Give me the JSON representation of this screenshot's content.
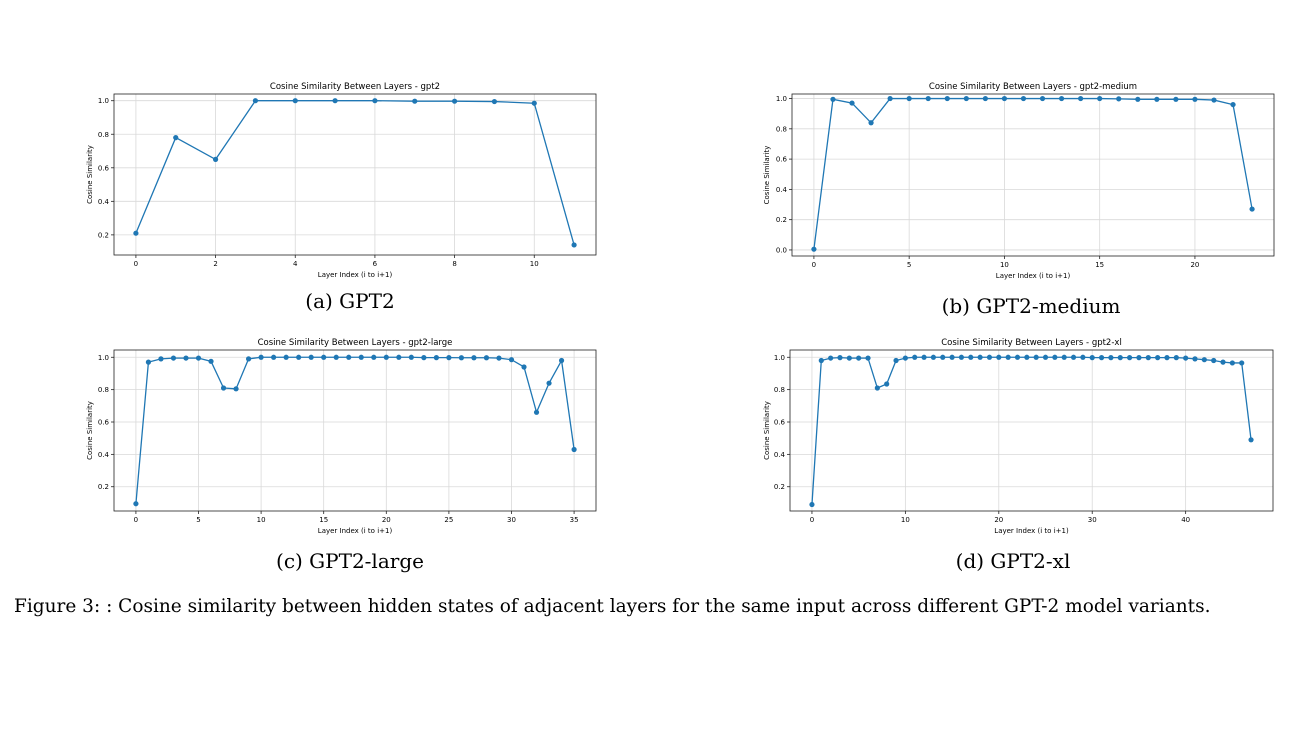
{
  "figure_caption": "Figure 3: : Cosine similarity between hidden states of adjacent layers for the same input across different GPT-2 model variants.",
  "subfigures": [
    {
      "caption": "(a) GPT2"
    },
    {
      "caption": "(b) GPT2-medium"
    },
    {
      "caption": "(c) GPT2-large"
    },
    {
      "caption": "(d) GPT2-xl"
    }
  ],
  "chart_data": [
    {
      "type": "line",
      "title": "Cosine Similarity Between Layers - gpt2",
      "xlabel": "Layer Index (i to i+1)",
      "ylabel": "Cosine Similarity",
      "color": "#1f77b4",
      "grid": true,
      "xlim": [
        -0.55,
        11.55
      ],
      "ylim": [
        0.08,
        1.04
      ],
      "xticks": [
        0,
        2,
        4,
        6,
        8,
        10
      ],
      "yticks": [
        0.2,
        0.4,
        0.6,
        0.8,
        1.0
      ],
      "yticklabels": [
        "0.2",
        "0.4",
        "0.6",
        "0.8",
        "1.0"
      ],
      "x": [
        0,
        1,
        2,
        3,
        4,
        5,
        6,
        7,
        8,
        9,
        10,
        11
      ],
      "y": [
        0.21,
        0.78,
        0.65,
        1.0,
        1.0,
        1.0,
        1.0,
        0.997,
        0.997,
        0.995,
        0.985,
        0.14
      ]
    },
    {
      "type": "line",
      "title": "Cosine Similarity Between Layers - gpt2-medium",
      "xlabel": "Layer Index (i to i+1)",
      "ylabel": "Cosine Similarity",
      "color": "#1f77b4",
      "grid": true,
      "xlim": [
        -1.15,
        24.15
      ],
      "ylim": [
        -0.04,
        1.03
      ],
      "xticks": [
        0,
        5,
        10,
        15,
        20
      ],
      "yticks": [
        0.0,
        0.2,
        0.4,
        0.6,
        0.8,
        1.0
      ],
      "yticklabels": [
        "0.0",
        "0.2",
        "0.4",
        "0.6",
        "0.8",
        "1.0"
      ],
      "x": [
        0,
        1,
        2,
        3,
        4,
        5,
        6,
        7,
        8,
        9,
        10,
        11,
        12,
        13,
        14,
        15,
        16,
        17,
        18,
        19,
        20,
        21,
        22,
        23
      ],
      "y": [
        0.005,
        0.995,
        0.97,
        0.84,
        1.0,
        1.0,
        1.0,
        1.0,
        1.0,
        1.0,
        1.0,
        1.0,
        1.0,
        1.0,
        1.0,
        1.0,
        0.998,
        0.995,
        0.995,
        0.995,
        0.995,
        0.99,
        0.96,
        0.27
      ]
    },
    {
      "type": "line",
      "title": "Cosine Similarity Between Layers - gpt2-large",
      "xlabel": "Layer Index (i to i+1)",
      "ylabel": "Cosine Similarity",
      "color": "#1f77b4",
      "grid": true,
      "xlim": [
        -1.75,
        36.75
      ],
      "ylim": [
        0.05,
        1.045
      ],
      "xticks": [
        0,
        5,
        10,
        15,
        20,
        25,
        30,
        35
      ],
      "yticks": [
        0.2,
        0.4,
        0.6,
        0.8,
        1.0
      ],
      "yticklabels": [
        "0.2",
        "0.4",
        "0.6",
        "0.8",
        "1.0"
      ],
      "x": [
        0,
        1,
        2,
        3,
        4,
        5,
        6,
        7,
        8,
        9,
        10,
        11,
        12,
        13,
        14,
        15,
        16,
        17,
        18,
        19,
        20,
        21,
        22,
        23,
        24,
        25,
        26,
        27,
        28,
        29,
        30,
        31,
        32,
        33,
        34,
        35
      ],
      "y": [
        0.095,
        0.97,
        0.99,
        0.995,
        0.995,
        0.995,
        0.975,
        0.81,
        0.805,
        0.99,
        1.0,
        1.0,
        1.0,
        1.0,
        1.0,
        1.0,
        1.0,
        1.0,
        1.0,
        1.0,
        1.0,
        1.0,
        1.0,
        0.998,
        0.998,
        0.998,
        0.997,
        0.997,
        0.997,
        0.995,
        0.985,
        0.94,
        0.66,
        0.84,
        0.98,
        0.43
      ]
    },
    {
      "type": "line",
      "title": "Cosine Similarity Between Layers - gpt2-xl",
      "xlabel": "Layer Index (i to i+1)",
      "ylabel": "Cosine Similarity",
      "color": "#1f77b4",
      "grid": true,
      "xlim": [
        -2.35,
        49.35
      ],
      "ylim": [
        0.05,
        1.045
      ],
      "xticks": [
        0,
        10,
        20,
        30,
        40
      ],
      "yticks": [
        0.2,
        0.4,
        0.6,
        0.8,
        1.0
      ],
      "yticklabels": [
        "0.2",
        "0.4",
        "0.6",
        "0.8",
        "1.0"
      ],
      "x": [
        0,
        1,
        2,
        3,
        4,
        5,
        6,
        7,
        8,
        9,
        10,
        11,
        12,
        13,
        14,
        15,
        16,
        17,
        18,
        19,
        20,
        21,
        22,
        23,
        24,
        25,
        26,
        27,
        28,
        29,
        30,
        31,
        32,
        33,
        34,
        35,
        36,
        37,
        38,
        39,
        40,
        41,
        42,
        43,
        44,
        45,
        46,
        47
      ],
      "y": [
        0.09,
        0.98,
        0.995,
        0.998,
        0.995,
        0.995,
        0.995,
        0.81,
        0.835,
        0.98,
        0.995,
        1.0,
        1.0,
        1.0,
        1.0,
        1.0,
        1.0,
        1.0,
        1.0,
        1.0,
        1.0,
        1.0,
        1.0,
        1.0,
        1.0,
        1.0,
        1.0,
        1.0,
        1.0,
        1.0,
        0.998,
        0.998,
        0.998,
        0.998,
        0.998,
        0.998,
        0.998,
        0.998,
        0.998,
        0.998,
        0.995,
        0.99,
        0.985,
        0.98,
        0.97,
        0.965,
        0.965,
        0.49
      ]
    }
  ]
}
